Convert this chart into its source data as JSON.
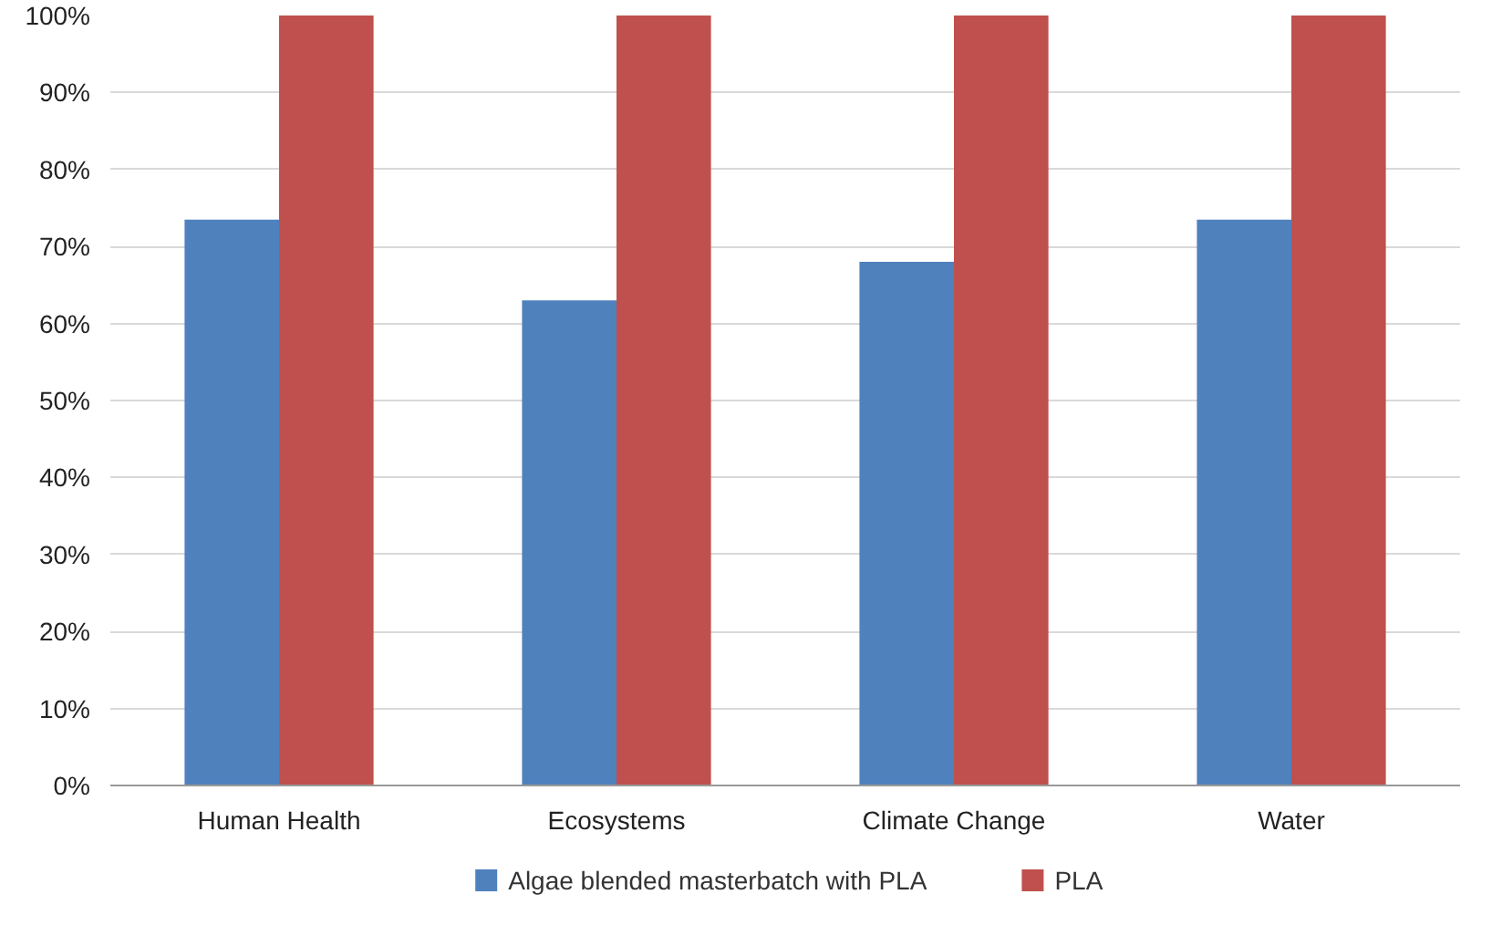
{
  "chart_data": {
    "type": "bar",
    "categories": [
      "Human Health",
      "Ecosystems",
      "Climate Change",
      "Water"
    ],
    "series": [
      {
        "name": "Algae blended masterbatch with PLA",
        "color": "#4f81bd",
        "values": [
          73.5,
          63,
          68,
          73.5
        ]
      },
      {
        "name": "PLA",
        "color": "#c0504d",
        "values": [
          100,
          100,
          100,
          100
        ]
      }
    ],
    "ylim": [
      0,
      100
    ],
    "yticks": [
      {
        "value": 0,
        "label": "0%"
      },
      {
        "value": 10,
        "label": "10%"
      },
      {
        "value": 20,
        "label": "20%"
      },
      {
        "value": 30,
        "label": "30%"
      },
      {
        "value": 40,
        "label": "40%"
      },
      {
        "value": 50,
        "label": "50%"
      },
      {
        "value": 60,
        "label": "60%"
      },
      {
        "value": 70,
        "label": "70%"
      },
      {
        "value": 80,
        "label": "80%"
      },
      {
        "value": 90,
        "label": "90%"
      },
      {
        "value": 100,
        "label": "100%"
      }
    ],
    "grid": "y",
    "legend": "bottom"
  }
}
